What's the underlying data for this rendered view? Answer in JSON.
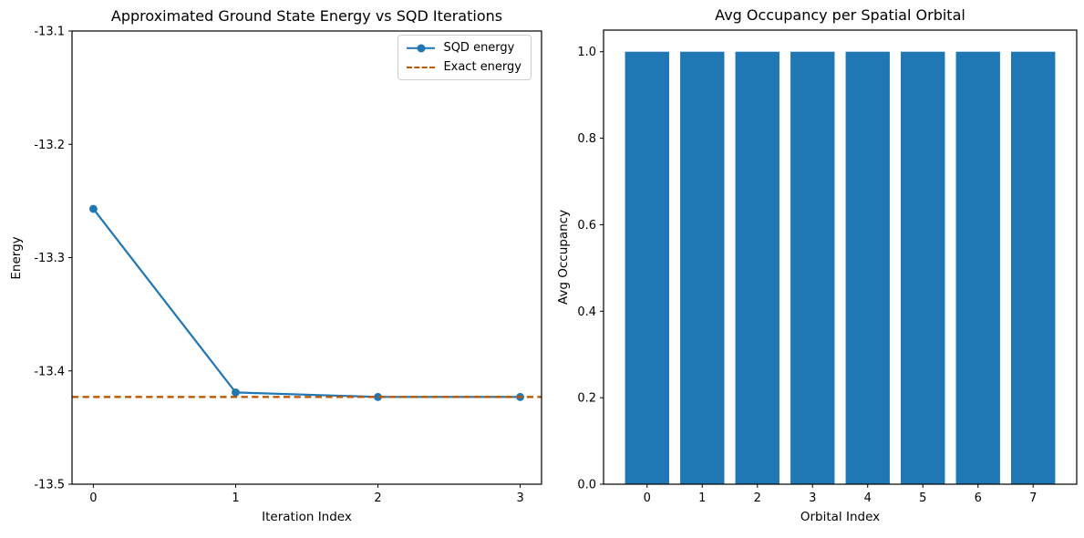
{
  "figure": {
    "background": "#ffffff"
  },
  "chart_data": [
    {
      "type": "line",
      "title": "Approximated Ground State Energy vs SQD Iterations",
      "xlabel": "Iteration Index",
      "ylabel": "Energy",
      "x": [
        0,
        1,
        2,
        3
      ],
      "series": [
        {
          "name": "SQD energy",
          "color": "#1f77b4",
          "marker": "o",
          "values": [
            -13.257,
            -13.419,
            -13.423,
            -13.423
          ]
        }
      ],
      "hline": {
        "name": "Exact energy",
        "value": -13.423,
        "color": "#BF5700",
        "linestyle": "dashed"
      },
      "xlim": [
        -0.15,
        3.15
      ],
      "ylim": [
        -13.5,
        -13.1
      ],
      "xticks": [
        0,
        1,
        2,
        3
      ],
      "xtick_labels": [
        "0",
        "1",
        "2",
        "3"
      ],
      "yticks": [
        -13.5,
        -13.4,
        -13.3,
        -13.2,
        -13.1
      ],
      "ytick_labels": [
        "-13.5",
        "-13.4",
        "-13.3",
        "-13.2",
        "-13.1"
      ],
      "grid": false,
      "legend": {
        "position": "upper right",
        "entries": [
          {
            "label": "SQD energy",
            "color": "#1f77b4",
            "style": "solid-marker"
          },
          {
            "label": "Exact energy",
            "color": "#BF5700",
            "style": "dashed"
          }
        ]
      }
    },
    {
      "type": "bar",
      "title": "Avg Occupancy per Spatial Orbital",
      "xlabel": "Orbital Index",
      "ylabel": "Avg Occupancy",
      "categories": [
        "0",
        "1",
        "2",
        "3",
        "4",
        "5",
        "6",
        "7"
      ],
      "values": [
        1.0,
        1.0,
        1.0,
        1.0,
        1.0,
        1.0,
        1.0,
        1.0
      ],
      "bar_color": "#1f77b4",
      "bar_width": 0.8,
      "xlim": [
        -0.79,
        7.79
      ],
      "ylim": [
        0,
        1.05
      ],
      "yticks": [
        0.0,
        0.2,
        0.4,
        0.6,
        0.8,
        1.0
      ],
      "ytick_labels": [
        "0.0",
        "0.2",
        "0.4",
        "0.6",
        "0.8",
        "1.0"
      ],
      "grid": false,
      "legend": null
    }
  ]
}
